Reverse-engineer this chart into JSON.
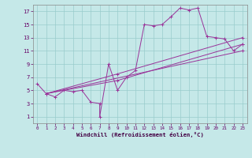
{
  "xlabel": "Windchill (Refroidissement éolien,°C)",
  "bg_color": "#c5e8e8",
  "line_color": "#993399",
  "grid_color": "#99cccc",
  "xlim": [
    -0.5,
    23.5
  ],
  "ylim": [
    0,
    18
  ],
  "xticks": [
    0,
    1,
    2,
    3,
    4,
    5,
    6,
    7,
    8,
    9,
    10,
    11,
    12,
    13,
    14,
    15,
    16,
    17,
    18,
    19,
    20,
    21,
    22,
    23
  ],
  "yticks": [
    1,
    3,
    5,
    7,
    9,
    11,
    13,
    15,
    17
  ],
  "series_main": {
    "x": [
      0,
      1,
      2,
      3,
      4,
      5,
      6,
      7,
      7,
      8,
      9,
      10,
      11,
      12,
      13,
      14,
      15,
      16,
      17,
      18,
      19,
      20,
      21,
      22,
      23
    ],
    "y": [
      6,
      4.5,
      4,
      5,
      4.8,
      5,
      3.2,
      3,
      1,
      9,
      5,
      7,
      8,
      15,
      14.8,
      15,
      16.2,
      17.5,
      17.2,
      17.5,
      13.2,
      13,
      12.8,
      11,
      12
    ]
  },
  "series_straight": [
    {
      "x": [
        1,
        23
      ],
      "y": [
        4.5,
        11
      ]
    },
    {
      "x": [
        1,
        9,
        23
      ],
      "y": [
        4.5,
        6.5,
        12
      ]
    },
    {
      "x": [
        1,
        9,
        23
      ],
      "y": [
        4.5,
        7.5,
        13
      ]
    }
  ]
}
